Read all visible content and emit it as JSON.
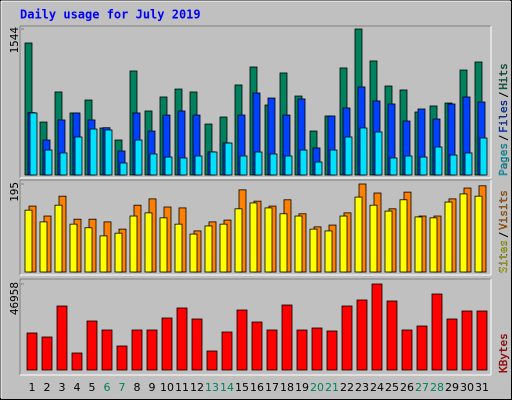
{
  "chart_data": {
    "type": "bar",
    "title": "Daily usage for July 2019",
    "categories": [
      "1",
      "2",
      "3",
      "4",
      "5",
      "6",
      "7",
      "8",
      "9",
      "10",
      "11",
      "12",
      "13",
      "14",
      "15",
      "16",
      "17",
      "18",
      "19",
      "20",
      "21",
      "22",
      "23",
      "24",
      "25",
      "26",
      "27",
      "28",
      "29",
      "30",
      "31"
    ],
    "category_colors": [
      "#000000",
      "#000000",
      "#000000",
      "#000000",
      "#000000",
      "#00805c",
      "#00805c",
      "#000000",
      "#000000",
      "#000000",
      "#000000",
      "#000000",
      "#00805c",
      "#00805c",
      "#000000",
      "#000000",
      "#000000",
      "#000000",
      "#000000",
      "#00805c",
      "#00805c",
      "#000000",
      "#000000",
      "#000000",
      "#000000",
      "#000000",
      "#00805c",
      "#00805c",
      "#000000",
      "#000000",
      "#000000"
    ],
    "panels": [
      {
        "ylim": [
          0,
          1544
        ],
        "yticks": [
          1544
        ],
        "series": [
          {
            "name": "Hits",
            "color": "#00805c",
            "values": [
              1396,
              560,
              878,
              656,
              793,
              497,
              370,
              1100,
              677,
              825,
              909,
              878,
              539,
              613,
              952,
              1142,
              740,
              1079,
              835,
              465,
              624,
              1132,
              1544,
              1206,
              941,
              899,
              666,
              730,
              761,
              1110,
              1195
            ]
          },
          {
            "name": "Files",
            "color": "#0040ff",
            "values": [
              660,
              370,
              582,
              656,
              582,
              500,
              254,
              656,
              465,
              634,
              677,
              634,
              245,
              340,
              634,
              867,
              814,
              634,
              804,
              286,
              624,
              709,
              931,
              783,
              751,
              571,
              698,
              592,
              751,
              825,
              772
            ]
          },
          {
            "name": "Pages",
            "color": "#00e0ff",
            "values": [
              656,
              264,
              233,
              402,
              486,
              476,
              127,
              370,
              222,
              190,
              180,
              201,
              243,
              338,
              201,
              243,
              222,
              201,
              264,
              137,
              264,
              402,
              497,
              455,
              180,
              201,
              190,
              296,
              211,
              233,
              391
            ]
          }
        ]
      },
      {
        "ylim": [
          0,
          195
        ],
        "yticks": [
          195
        ],
        "series": [
          {
            "name": "Visits",
            "color": "#ff8000",
            "values": [
              146,
              124,
              168,
              117,
              117,
              111,
              95,
              148,
              162,
              144,
              142,
              91,
              111,
              115,
              182,
              157,
              146,
              160,
              129,
              100,
              104,
              131,
              195,
              175,
              140,
              177,
              124,
              124,
              162,
              186,
              191
            ]
          },
          {
            "name": "Sites",
            "color": "#ffff00",
            "values": [
              137,
              111,
              148,
              106,
              98,
              80,
              86,
              124,
              131,
              120,
              106,
              84,
              102,
              106,
              140,
              153,
              142,
              129,
              124,
              95,
              91,
              124,
              166,
              148,
              135,
              160,
              122,
              120,
              155,
              173,
              168
            ]
          }
        ]
      },
      {
        "ylim": [
          0,
          46958
        ],
        "yticks": [
          46958
        ],
        "series": [
          {
            "name": "KBytes",
            "color": "#ff0000",
            "values": [
              20200,
              18018,
              34943,
              9282,
              26753,
              21840,
              13104,
              21840,
              21840,
              28392,
              33852,
              27846,
              10374,
              20748,
              32760,
              26208,
              21840,
              35490,
              21840,
              22932,
              21294,
              34943,
              38220,
              46958,
              37674,
              21840,
              24024,
              41496,
              27846,
              32214,
              32214
            ]
          }
        ]
      }
    ]
  }
}
